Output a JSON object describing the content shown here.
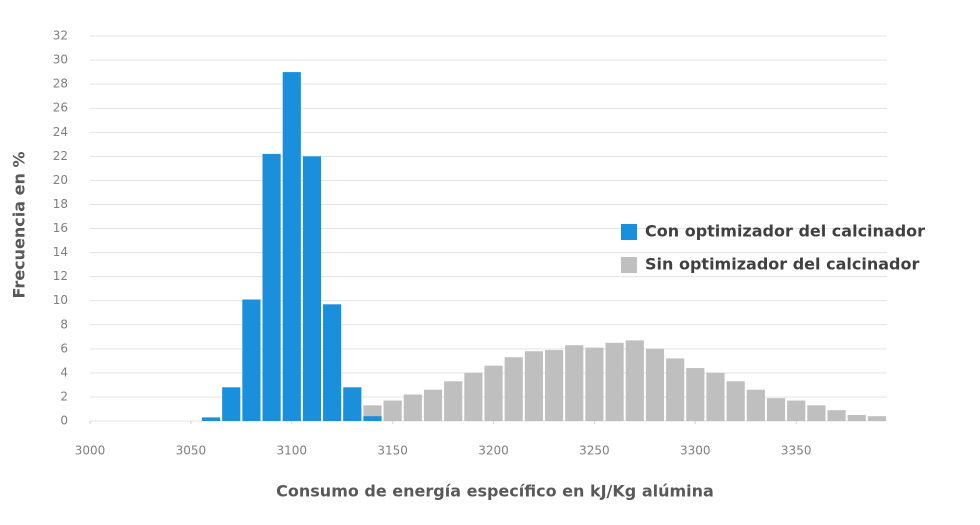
{
  "chart_data": {
    "type": "histogram",
    "x_label": "Consumo de energía específico en kJ/Kg alúmina",
    "y_label": "Frecuencia en %",
    "xlim": [
      3000,
      3395
    ],
    "xticks": [
      3000,
      3050,
      3100,
      3150,
      3200,
      3250,
      3300,
      3350
    ],
    "ylim": [
      0,
      32
    ],
    "yticks": [
      0,
      2,
      4,
      6,
      8,
      10,
      12,
      14,
      16,
      18,
      20,
      22,
      24,
      26,
      28,
      30,
      32
    ],
    "grid": true,
    "legend": "right",
    "series": [
      {
        "name": "Sin optimizador del calcinador",
        "color": "#bfbfbf",
        "bins": [
          3095,
          3105,
          3115,
          3125,
          3135,
          3145,
          3155,
          3165,
          3175,
          3185,
          3195,
          3205,
          3215,
          3225,
          3235,
          3245,
          3255,
          3265,
          3275,
          3285,
          3295,
          3305,
          3315,
          3325,
          3335,
          3345,
          3355,
          3365,
          3375,
          3385,
          3395
        ],
        "values": [
          0.3,
          0.5,
          0.7,
          1.0,
          1.3,
          1.7,
          2.2,
          2.6,
          3.3,
          4.0,
          4.6,
          5.3,
          5.8,
          5.9,
          6.3,
          6.1,
          6.5,
          6.7,
          6.0,
          5.2,
          4.4,
          4.0,
          3.3,
          2.6,
          1.9,
          1.7,
          1.3,
          0.9,
          0.5,
          0.4
        ]
      },
      {
        "name": "Con optimizador del calcinador",
        "color": "#1a8fdb",
        "bins": [
          3055,
          3065,
          3075,
          3085,
          3095,
          3105,
          3115,
          3125,
          3135,
          3145
        ],
        "values": [
          0.3,
          2.8,
          10.1,
          22.2,
          29,
          22,
          9.7,
          2.8,
          0.4
        ]
      }
    ]
  }
}
